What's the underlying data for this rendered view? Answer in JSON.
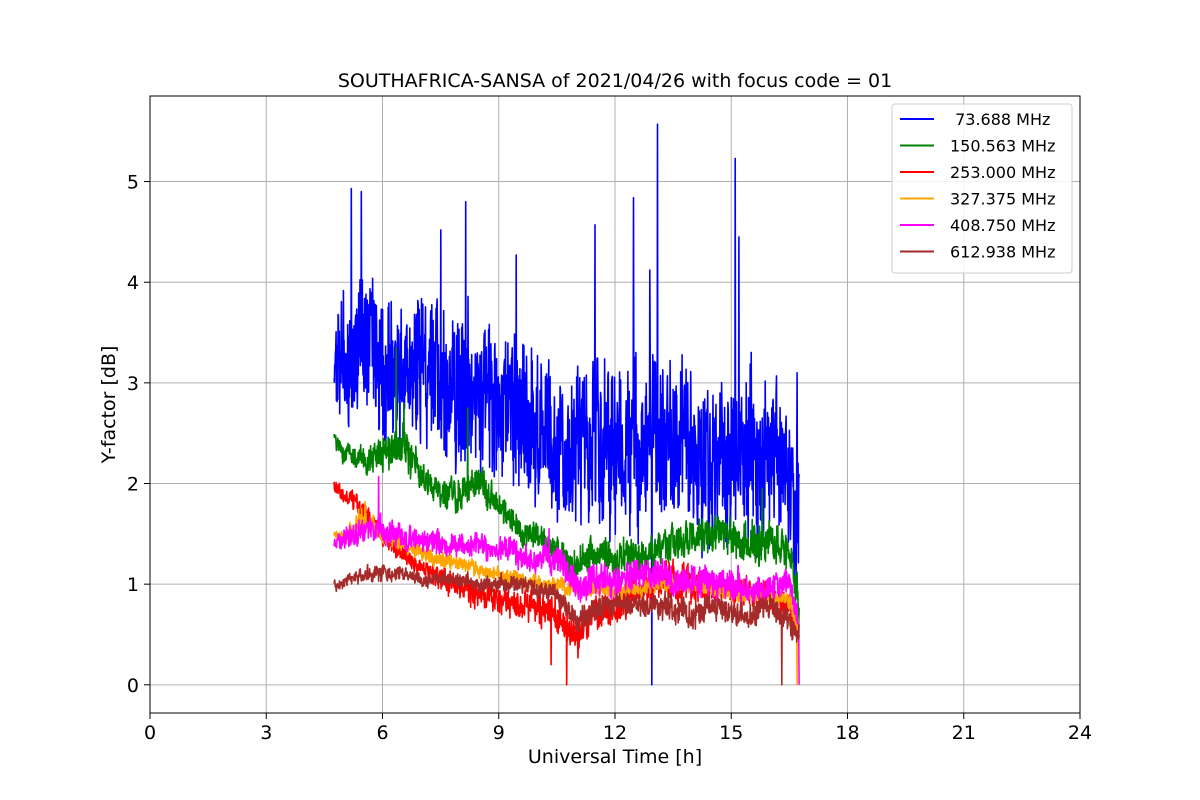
{
  "chart_data": {
    "type": "line",
    "title": "SOUTHAFRICA-SANSA of 2021/04/26 with focus code = 01",
    "xlabel": "Universal Time [h]",
    "ylabel": "Y-factor [dB]",
    "xlim": [
      0,
      24
    ],
    "ylim": [
      -0.28,
      5.85
    ],
    "xticks": [
      0,
      3,
      6,
      9,
      12,
      15,
      18,
      21,
      24
    ],
    "yticks": [
      0,
      1,
      2,
      3,
      4,
      5
    ],
    "grid": true,
    "legend_position": "top-right",
    "series": [
      {
        "name": " 73.688 MHz",
        "color": "#0000ff",
        "x": [
          4.75,
          5.0,
          5.5,
          6.0,
          6.5,
          7.0,
          7.5,
          8.0,
          8.5,
          9.0,
          9.5,
          10.0,
          10.5,
          11.0,
          11.5,
          12.0,
          12.5,
          13.0,
          13.5,
          14.0,
          14.5,
          15.0,
          15.5,
          16.0,
          16.5,
          16.75
        ],
        "values": [
          3.1,
          3.2,
          3.3,
          3.2,
          3.1,
          3.1,
          3.0,
          3.0,
          2.9,
          2.8,
          2.7,
          2.5,
          2.4,
          2.3,
          2.4,
          2.3,
          2.3,
          2.4,
          2.4,
          2.4,
          2.3,
          2.3,
          2.3,
          2.2,
          2.1,
          1.4
        ],
        "amplitude": [
          0.4,
          0.6,
          0.7,
          0.7,
          0.7,
          0.8,
          0.8,
          0.8,
          0.8,
          0.8,
          0.8,
          0.8,
          0.8,
          0.8,
          0.8,
          0.8,
          0.8,
          0.8,
          0.8,
          0.8,
          0.8,
          0.8,
          0.8,
          0.8,
          0.7,
          0.9
        ],
        "spikes": [
          [
            5.2,
            4.93
          ],
          [
            5.45,
            4.9
          ],
          [
            7.5,
            4.52
          ],
          [
            8.15,
            4.8
          ],
          [
            9.45,
            4.27
          ],
          [
            11.48,
            4.57
          ],
          [
            12.48,
            4.84
          ],
          [
            13.1,
            5.57
          ],
          [
            12.95,
            0.0
          ],
          [
            15.1,
            5.23
          ],
          [
            15.2,
            4.45
          ],
          [
            12.9,
            4.12
          ],
          [
            16.7,
            3.1
          ]
        ]
      },
      {
        "name": "150.563 MHz",
        "color": "#008000",
        "x": [
          4.75,
          5.0,
          5.5,
          6.0,
          6.5,
          7.0,
          7.5,
          8.0,
          8.5,
          9.0,
          9.5,
          10.0,
          10.5,
          11.0,
          11.5,
          12.0,
          12.5,
          13.0,
          13.5,
          14.0,
          14.5,
          15.0,
          15.5,
          16.0,
          16.5,
          16.75
        ],
        "values": [
          2.45,
          2.3,
          2.25,
          2.3,
          2.35,
          2.1,
          1.85,
          1.9,
          2.0,
          1.8,
          1.55,
          1.45,
          1.3,
          1.2,
          1.3,
          1.25,
          1.3,
          1.35,
          1.4,
          1.45,
          1.5,
          1.45,
          1.4,
          1.45,
          1.3,
          0.75
        ],
        "amplitude": [
          0.12,
          0.12,
          0.12,
          0.18,
          0.22,
          0.15,
          0.15,
          0.18,
          0.18,
          0.15,
          0.14,
          0.14,
          0.14,
          0.16,
          0.16,
          0.18,
          0.18,
          0.18,
          0.18,
          0.18,
          0.2,
          0.2,
          0.2,
          0.22,
          0.2,
          0.2
        ],
        "spikes": [
          [
            6.35,
            3.35
          ],
          [
            6.55,
            2.8
          ],
          [
            8.2,
            2.75
          ],
          [
            15.8,
            1.95
          ]
        ]
      },
      {
        "name": "253.000 MHz",
        "color": "#ff0000",
        "x": [
          4.75,
          5.0,
          5.5,
          6.0,
          6.5,
          7.0,
          7.5,
          8.0,
          8.5,
          9.0,
          9.5,
          10.0,
          10.5,
          11.0,
          11.5,
          12.0,
          12.5,
          13.0,
          13.5,
          14.0,
          14.5,
          15.0,
          15.5,
          16.0,
          16.5,
          16.75
        ],
        "values": [
          1.95,
          1.9,
          1.75,
          1.5,
          1.3,
          1.15,
          1.05,
          0.95,
          0.9,
          0.85,
          0.8,
          0.75,
          0.7,
          0.5,
          0.7,
          0.75,
          0.9,
          1.0,
          1.05,
          1.0,
          0.95,
          0.95,
          0.9,
          0.9,
          0.8,
          0.55
        ],
        "amplitude": [
          0.08,
          0.08,
          0.1,
          0.1,
          0.1,
          0.1,
          0.12,
          0.12,
          0.14,
          0.14,
          0.14,
          0.16,
          0.18,
          0.2,
          0.16,
          0.16,
          0.18,
          0.18,
          0.2,
          0.18,
          0.16,
          0.14,
          0.14,
          0.14,
          0.14,
          0.14
        ],
        "spikes": [
          [
            10.75,
            0.0
          ],
          [
            10.35,
            0.2
          ]
        ]
      },
      {
        "name": "327.375 MHz",
        "color": "#ffa500",
        "x": [
          4.75,
          5.0,
          5.5,
          6.0,
          6.5,
          7.0,
          7.5,
          8.0,
          8.5,
          9.0,
          9.5,
          10.0,
          10.5,
          11.0,
          11.5,
          12.0,
          12.5,
          13.0,
          13.5,
          14.0,
          14.5,
          15.0,
          15.5,
          16.0,
          16.5,
          16.75
        ],
        "values": [
          1.5,
          1.45,
          1.65,
          1.5,
          1.4,
          1.3,
          1.25,
          1.2,
          1.15,
          1.1,
          1.05,
          1.0,
          1.0,
          0.95,
          0.95,
          0.95,
          0.95,
          1.0,
          1.0,
          1.0,
          0.95,
          0.9,
          0.9,
          0.9,
          0.85,
          0.55
        ],
        "amplitude": [
          0.06,
          0.08,
          0.12,
          0.1,
          0.08,
          0.08,
          0.08,
          0.08,
          0.08,
          0.08,
          0.08,
          0.08,
          0.08,
          0.08,
          0.08,
          0.08,
          0.08,
          0.08,
          0.08,
          0.08,
          0.08,
          0.08,
          0.08,
          0.08,
          0.08,
          0.1
        ],
        "spikes": [
          [
            5.55,
            1.82
          ],
          [
            16.7,
            0.0
          ]
        ]
      },
      {
        "name": "408.750 MHz",
        "color": "#ff00ff",
        "x": [
          4.75,
          5.0,
          5.5,
          6.0,
          6.5,
          7.0,
          7.5,
          8.0,
          8.5,
          9.0,
          9.5,
          10.0,
          10.5,
          11.0,
          11.5,
          12.0,
          12.5,
          13.0,
          13.5,
          14.0,
          14.5,
          15.0,
          15.5,
          16.0,
          16.5,
          16.75
        ],
        "values": [
          1.4,
          1.45,
          1.55,
          1.55,
          1.45,
          1.45,
          1.4,
          1.4,
          1.35,
          1.35,
          1.3,
          1.25,
          1.25,
          1.0,
          1.05,
          1.05,
          1.1,
          1.1,
          1.05,
          1.05,
          1.0,
          1.0,
          0.95,
          1.0,
          1.0,
          0.6
        ],
        "amplitude": [
          0.06,
          0.1,
          0.14,
          0.14,
          0.12,
          0.12,
          0.12,
          0.12,
          0.12,
          0.14,
          0.14,
          0.14,
          0.14,
          0.16,
          0.16,
          0.16,
          0.16,
          0.16,
          0.16,
          0.16,
          0.16,
          0.16,
          0.14,
          0.14,
          0.14,
          0.16
        ],
        "spikes": [
          [
            5.9,
            2.07
          ],
          [
            10.3,
            1.55
          ],
          [
            16.75,
            0.0
          ]
        ]
      },
      {
        "name": "612.938 MHz",
        "color": "#a52a2a",
        "x": [
          4.75,
          5.0,
          5.5,
          6.0,
          6.5,
          7.0,
          7.5,
          8.0,
          8.5,
          9.0,
          9.5,
          10.0,
          10.5,
          11.0,
          11.5,
          12.0,
          12.5,
          13.0,
          13.5,
          14.0,
          14.5,
          15.0,
          15.5,
          16.0,
          16.5,
          16.75
        ],
        "values": [
          1.0,
          1.0,
          1.1,
          1.1,
          1.1,
          1.05,
          1.05,
          1.05,
          1.0,
          1.0,
          1.0,
          0.95,
          0.9,
          0.65,
          0.75,
          0.8,
          0.8,
          0.8,
          0.75,
          0.7,
          0.75,
          0.7,
          0.7,
          0.8,
          0.6,
          0.5
        ],
        "amplitude": [
          0.05,
          0.07,
          0.08,
          0.08,
          0.07,
          0.07,
          0.07,
          0.07,
          0.07,
          0.08,
          0.08,
          0.09,
          0.1,
          0.14,
          0.12,
          0.12,
          0.12,
          0.12,
          0.14,
          0.14,
          0.14,
          0.12,
          0.12,
          0.12,
          0.14,
          0.16
        ],
        "spikes": [
          [
            16.3,
            0.0
          ]
        ]
      }
    ]
  }
}
